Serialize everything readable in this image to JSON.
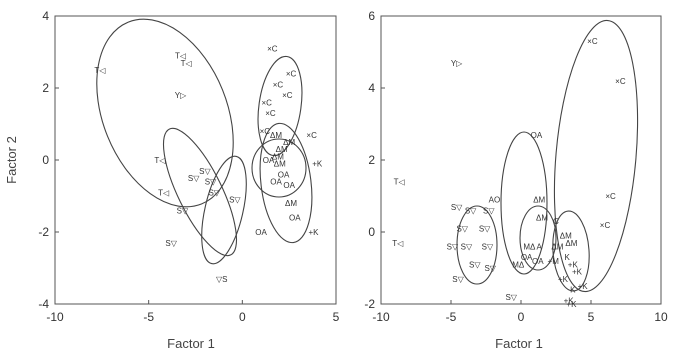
{
  "chart_data": [
    {
      "type": "scatter",
      "xlabel": "Factor 1",
      "ylabel": "Factor 2",
      "xlim": [
        -10,
        5
      ],
      "ylim": [
        -4,
        4
      ],
      "xticks": [
        -10,
        -5,
        0,
        5
      ],
      "yticks": [
        -4,
        -2,
        0,
        2,
        4
      ],
      "points": [
        {
          "x": -7.6,
          "y": 2.5,
          "label": "T◁"
        },
        {
          "x": -3.3,
          "y": 2.9,
          "label": "T◁"
        },
        {
          "x": -3.0,
          "y": 2.7,
          "label": "T◁"
        },
        {
          "x": -3.3,
          "y": 1.8,
          "label": "Y▷"
        },
        {
          "x": -4.4,
          "y": 0.0,
          "label": "T◁"
        },
        {
          "x": -4.2,
          "y": -0.9,
          "label": "T◁"
        },
        {
          "x": -3.2,
          "y": -1.4,
          "label": "S▽"
        },
        {
          "x": -3.8,
          "y": -2.3,
          "label": "S▽"
        },
        {
          "x": -2.6,
          "y": -0.5,
          "label": "S▽"
        },
        {
          "x": -2.0,
          "y": -0.3,
          "label": "S▽"
        },
        {
          "x": -1.7,
          "y": -0.6,
          "label": "S▽"
        },
        {
          "x": -1.5,
          "y": -0.9,
          "label": "S▽"
        },
        {
          "x": -0.4,
          "y": -1.1,
          "label": "S▽"
        },
        {
          "x": -1.1,
          "y": -3.3,
          "label": "▽S"
        },
        {
          "x": 1.6,
          "y": 3.1,
          "label": "×C"
        },
        {
          "x": 2.6,
          "y": 2.4,
          "label": "×C"
        },
        {
          "x": 1.9,
          "y": 2.1,
          "label": "×C"
        },
        {
          "x": 2.4,
          "y": 1.8,
          "label": "×C"
        },
        {
          "x": 1.3,
          "y": 1.6,
          "label": "×C"
        },
        {
          "x": 1.5,
          "y": 1.3,
          "label": "×C"
        },
        {
          "x": 1.2,
          "y": 0.8,
          "label": "×C"
        },
        {
          "x": 3.7,
          "y": 0.7,
          "label": "×C"
        },
        {
          "x": 1.8,
          "y": 0.7,
          "label": "ΔM"
        },
        {
          "x": 2.5,
          "y": 0.5,
          "label": "ΔM"
        },
        {
          "x": 2.1,
          "y": 0.3,
          "label": "ΔM"
        },
        {
          "x": 1.9,
          "y": 0.1,
          "label": "ΔM"
        },
        {
          "x": 1.4,
          "y": 0.0,
          "label": "OA"
        },
        {
          "x": 2.0,
          "y": -0.1,
          "label": "ΔM"
        },
        {
          "x": 2.2,
          "y": -0.4,
          "label": "OA"
        },
        {
          "x": 1.8,
          "y": -0.6,
          "label": "OA"
        },
        {
          "x": 2.5,
          "y": -0.7,
          "label": "OA"
        },
        {
          "x": 4.0,
          "y": -0.1,
          "label": "+K"
        },
        {
          "x": 2.6,
          "y": -1.2,
          "label": "ΔM"
        },
        {
          "x": 2.8,
          "y": -1.6,
          "label": "OA"
        },
        {
          "x": 3.8,
          "y": -2.0,
          "label": "+K"
        },
        {
          "x": 1.0,
          "y": -2.0,
          "label": "OA"
        }
      ]
    },
    {
      "type": "scatter",
      "xlabel": "Factor 1",
      "ylabel": "",
      "xlim": [
        -10,
        10
      ],
      "ylim": [
        -2,
        6
      ],
      "xticks": [
        -10,
        -5,
        0,
        5,
        10
      ],
      "yticks": [
        -2,
        0,
        2,
        4,
        6
      ],
      "points": [
        {
          "x": -4.6,
          "y": 4.7,
          "label": "Y▷"
        },
        {
          "x": -8.7,
          "y": 1.4,
          "label": "T◁"
        },
        {
          "x": -8.8,
          "y": -0.3,
          "label": "T◁"
        },
        {
          "x": 1.1,
          "y": 2.7,
          "label": "OA"
        },
        {
          "x": 5.1,
          "y": 5.3,
          "label": "×C"
        },
        {
          "x": 7.1,
          "y": 4.2,
          "label": "×C"
        },
        {
          "x": 6.4,
          "y": 1.0,
          "label": "×C"
        },
        {
          "x": 6.0,
          "y": 0.2,
          "label": "×C"
        },
        {
          "x": -1.9,
          "y": 0.9,
          "label": "AO"
        },
        {
          "x": -4.6,
          "y": 0.7,
          "label": "S▽"
        },
        {
          "x": -3.6,
          "y": 0.6,
          "label": "S▽"
        },
        {
          "x": -2.3,
          "y": 0.6,
          "label": "S▽"
        },
        {
          "x": -4.2,
          "y": 0.1,
          "label": "S▽"
        },
        {
          "x": -2.6,
          "y": 0.1,
          "label": "S▽"
        },
        {
          "x": -3.9,
          "y": -0.4,
          "label": "S▽"
        },
        {
          "x": -4.9,
          "y": -0.4,
          "label": "S▽"
        },
        {
          "x": -2.4,
          "y": -0.4,
          "label": "S▽"
        },
        {
          "x": -3.3,
          "y": -0.9,
          "label": "S▽"
        },
        {
          "x": -4.5,
          "y": -1.3,
          "label": "S▽"
        },
        {
          "x": -2.2,
          "y": -1.0,
          "label": "S▽"
        },
        {
          "x": -0.7,
          "y": -1.8,
          "label": "S▽"
        },
        {
          "x": 1.3,
          "y": 0.9,
          "label": "ΔM"
        },
        {
          "x": 1.5,
          "y": 0.4,
          "label": "ΔM"
        },
        {
          "x": 2.5,
          "y": 0.3,
          "label": "C"
        },
        {
          "x": 0.6,
          "y": -0.4,
          "label": "MΔ"
        },
        {
          "x": 1.3,
          "y": -0.4,
          "label": "A"
        },
        {
          "x": 3.2,
          "y": -0.1,
          "label": "ΔM"
        },
        {
          "x": 3.6,
          "y": -0.3,
          "label": "ΔM"
        },
        {
          "x": 2.6,
          "y": -0.4,
          "label": "ΔM"
        },
        {
          "x": 0.4,
          "y": -0.7,
          "label": "OA"
        },
        {
          "x": 1.2,
          "y": -0.8,
          "label": "OA"
        },
        {
          "x": -0.2,
          "y": -0.9,
          "label": "MΔ"
        },
        {
          "x": 2.3,
          "y": -0.8,
          "label": "+M"
        },
        {
          "x": 3.3,
          "y": -0.7,
          "label": "K"
        },
        {
          "x": 3.7,
          "y": -0.9,
          "label": "+K"
        },
        {
          "x": 4.0,
          "y": -1.1,
          "label": "+K"
        },
        {
          "x": 3.0,
          "y": -1.3,
          "label": "+K"
        },
        {
          "x": 4.4,
          "y": -1.5,
          "label": "+K"
        },
        {
          "x": 3.7,
          "y": -1.6,
          "label": "K"
        },
        {
          "x": 3.4,
          "y": -1.9,
          "label": "+K"
        },
        {
          "x": 3.6,
          "y": -2.0,
          "label": "+K"
        }
      ]
    }
  ]
}
